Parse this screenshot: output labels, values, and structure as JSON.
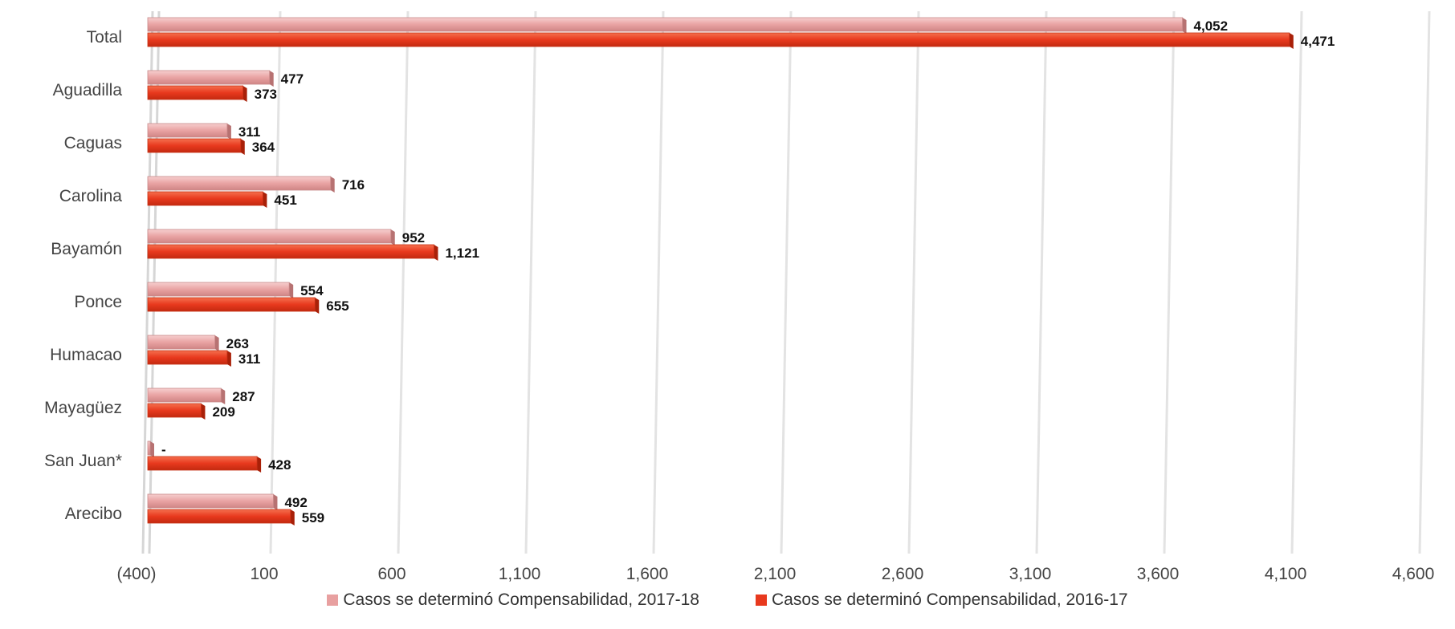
{
  "chart_data": {
    "type": "bar",
    "orientation": "horizontal",
    "categories": [
      "Total",
      "Aguadilla",
      "Caguas",
      "Carolina",
      "Bayamón",
      "Ponce",
      "Humacao",
      "Mayagüez",
      "San Juan*",
      "Arecibo"
    ],
    "series": [
      {
        "name": "Casos se determinó Compensabilidad, 2017-18",
        "color": "#e8a0a0",
        "values": [
          4052,
          477,
          311,
          716,
          952,
          554,
          263,
          287,
          0,
          492
        ],
        "labels": [
          "4,052",
          "477",
          "311",
          "716",
          "952",
          "554",
          "263",
          "287",
          "-",
          "492"
        ]
      },
      {
        "name": "Casos se determinó Compensabilidad, 2016-17",
        "color": "#e8391e",
        "values": [
          4471,
          373,
          364,
          451,
          1121,
          655,
          311,
          209,
          428,
          559
        ],
        "labels": [
          "4,471",
          "373",
          "364",
          "451",
          "1,121",
          "655",
          "311",
          "209",
          "428",
          "559"
        ]
      }
    ],
    "x_ticks": [
      "(400)",
      "100",
      "600",
      "1,100",
      "1,600",
      "2,100",
      "2,600",
      "3,100",
      "3,600",
      "4,100",
      "4,600"
    ],
    "x_tick_values": [
      -400,
      100,
      600,
      1100,
      1600,
      2100,
      2600,
      3100,
      3600,
      4100,
      4600
    ],
    "xlim": [
      -400,
      4600
    ],
    "title": "",
    "xlabel": "",
    "ylabel": "",
    "grid": true,
    "legend_position": "bottom-center"
  }
}
